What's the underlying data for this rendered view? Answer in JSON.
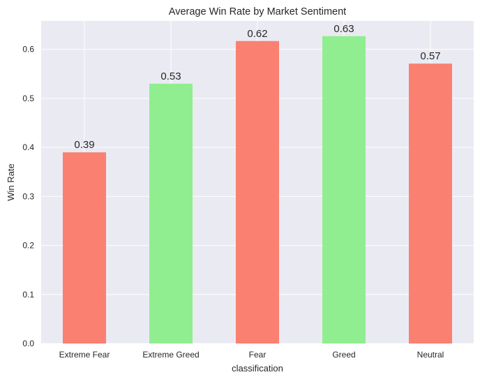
{
  "chart_data": {
    "type": "bar",
    "title": "Average Win Rate by Market Sentiment",
    "xlabel": "classification",
    "ylabel": "Win Rate",
    "categories": [
      "Extreme Fear",
      "Extreme Greed",
      "Fear",
      "Greed",
      "Neutral"
    ],
    "values": [
      0.39,
      0.53,
      0.617,
      0.627,
      0.571
    ],
    "data_labels": [
      "0.39",
      "0.53",
      "0.62",
      "0.63",
      "0.57"
    ],
    "bar_colors": [
      "#fa8072",
      "#90ee90",
      "#fa8072",
      "#90ee90",
      "#fa8072"
    ],
    "ylim": [
      0,
      0.658
    ],
    "yticks": [
      0.0,
      0.1,
      0.2,
      0.3,
      0.4,
      0.5,
      0.6
    ],
    "ytick_labels": [
      "0.0",
      "0.1",
      "0.2",
      "0.3",
      "0.4",
      "0.5",
      "0.6"
    ],
    "grid": true,
    "background_color": "#eaeaf2",
    "grid_color": "#ffffff"
  }
}
